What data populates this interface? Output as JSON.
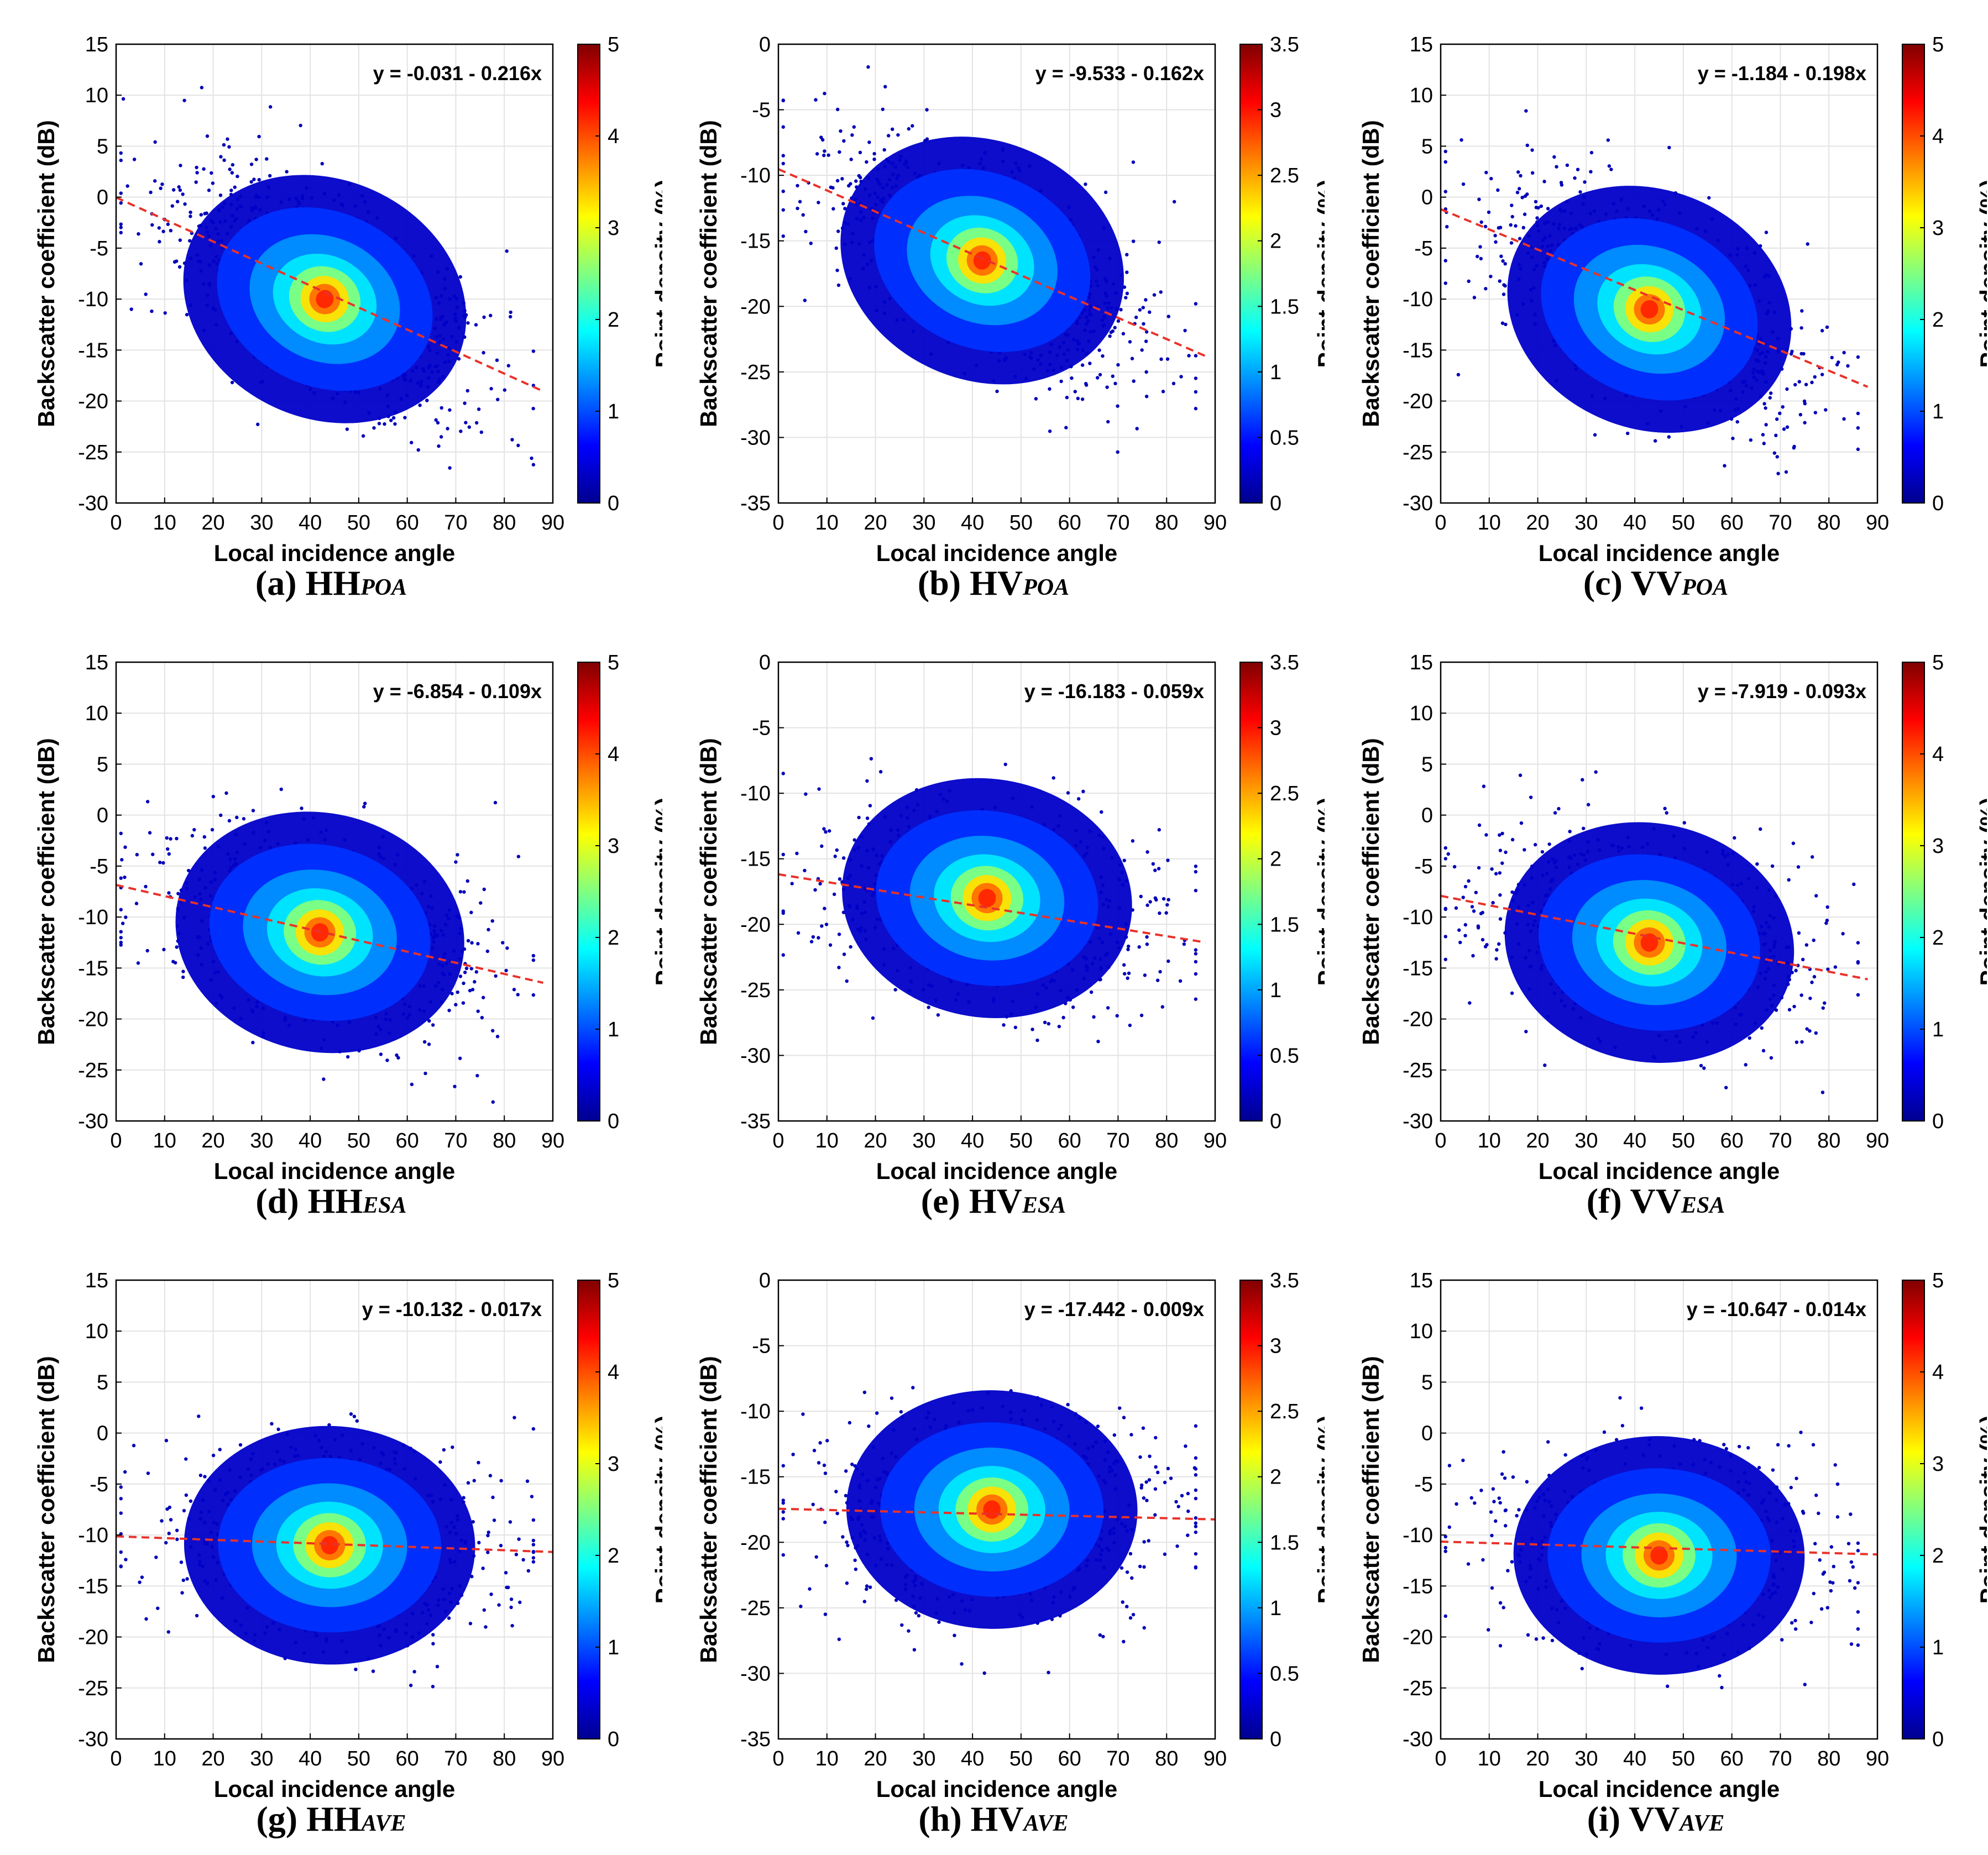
{
  "figure": {
    "xlabel": "Local incidence angle",
    "ylabel": "Backscatter coefficient (dB)",
    "colorbar_label": "Point density (%)",
    "colormap": [
      "#00008f",
      "#0000ff",
      "#0080ff",
      "#00ffff",
      "#80ff80",
      "#ffff00",
      "#ff8000",
      "#ff0000",
      "#800000"
    ],
    "fit_color": "#e8322a"
  },
  "chart_data": [
    {
      "id": "a",
      "type": "scatter",
      "caption_prefix": "(a) HH",
      "caption_sub": "POA",
      "equation": "y = -0.031 - 0.216x",
      "intercept": -0.031,
      "slope": -0.216,
      "xlim": [
        0,
        90
      ],
      "ylim": [
        -30,
        15
      ],
      "xticks": [
        0,
        10,
        20,
        30,
        40,
        50,
        60,
        70,
        80,
        90
      ],
      "yticks": [
        -30,
        -25,
        -20,
        -15,
        -10,
        -5,
        0,
        5,
        10,
        15
      ],
      "ytick_labels": [
        "-30",
        "-25",
        "-20",
        "-15",
        "-10",
        "-5",
        "0",
        "5",
        "10",
        "15"
      ],
      "cbar_lim": [
        0,
        5
      ],
      "cbar_ticks": [
        0,
        1,
        2,
        3,
        4,
        5
      ],
      "cbar_tick_labels": [
        "0",
        "1",
        "2",
        "3",
        "4",
        "5"
      ],
      "density_center": [
        43,
        -10
      ],
      "fit_x_range": [
        0,
        88
      ]
    },
    {
      "id": "b",
      "type": "scatter",
      "caption_prefix": "(b) HV",
      "caption_sub": "POA",
      "equation": "y = -9.533 - 0.162x",
      "intercept": -9.533,
      "slope": -0.162,
      "xlim": [
        0,
        90
      ],
      "ylim": [
        -35,
        0
      ],
      "xticks": [
        0,
        10,
        20,
        30,
        40,
        50,
        60,
        70,
        80,
        90
      ],
      "yticks": [
        -35,
        -30,
        -25,
        -20,
        -15,
        -10,
        -5,
        0
      ],
      "ytick_labels": [
        "-35",
        "-30",
        "-25",
        "-20",
        "-15",
        "-10",
        "-5",
        "0"
      ],
      "cbar_lim": [
        0,
        3.5
      ],
      "cbar_ticks": [
        0,
        0.5,
        1,
        1.5,
        2,
        2.5,
        3,
        3.5
      ],
      "cbar_tick_labels": [
        "0",
        "0.5",
        "1",
        "1.5",
        "2",
        "2.5",
        "3",
        "3.5"
      ],
      "density_center": [
        42,
        -16.5
      ],
      "fit_x_range": [
        0,
        88
      ]
    },
    {
      "id": "c",
      "type": "scatter",
      "caption_prefix": "(c) VV",
      "caption_sub": "POA",
      "equation": "y = -1.184 - 0.198x",
      "intercept": -1.184,
      "slope": -0.198,
      "xlim": [
        0,
        90
      ],
      "ylim": [
        -30,
        15
      ],
      "xticks": [
        0,
        10,
        20,
        30,
        40,
        50,
        60,
        70,
        80,
        90
      ],
      "yticks": [
        -30,
        -25,
        -20,
        -15,
        -10,
        -5,
        0,
        5,
        10,
        15
      ],
      "ytick_labels": [
        "-30",
        "-25",
        "-20",
        "-15",
        "-10",
        "-5",
        "0",
        "5",
        "10",
        "15"
      ],
      "cbar_lim": [
        0,
        5
      ],
      "cbar_ticks": [
        0,
        1,
        2,
        3,
        4,
        5
      ],
      "cbar_tick_labels": [
        "0",
        "1",
        "2",
        "3",
        "4",
        "5"
      ],
      "density_center": [
        43,
        -11
      ],
      "fit_x_range": [
        0,
        88
      ]
    },
    {
      "id": "d",
      "type": "scatter",
      "caption_prefix": "(d) HH",
      "caption_sub": "ESA",
      "equation": "y = -6.854 - 0.109x",
      "intercept": -6.854,
      "slope": -0.109,
      "xlim": [
        0,
        90
      ],
      "ylim": [
        -30,
        15
      ],
      "xticks": [
        0,
        10,
        20,
        30,
        40,
        50,
        60,
        70,
        80,
        90
      ],
      "yticks": [
        -30,
        -25,
        -20,
        -15,
        -10,
        -5,
        0,
        5,
        10,
        15
      ],
      "ytick_labels": [
        "-30",
        "-25",
        "-20",
        "-15",
        "-10",
        "-5",
        "0",
        "5",
        "10",
        "15"
      ],
      "cbar_lim": [
        0,
        5
      ],
      "cbar_ticks": [
        0,
        1,
        2,
        3,
        4,
        5
      ],
      "cbar_tick_labels": [
        "0",
        "1",
        "2",
        "3",
        "4",
        "5"
      ],
      "density_center": [
        42,
        -11.5
      ],
      "fit_x_range": [
        0,
        88
      ]
    },
    {
      "id": "e",
      "type": "scatter",
      "caption_prefix": "(e) HV",
      "caption_sub": "ESA",
      "equation": "y = -16.183 - 0.059x",
      "intercept": -16.183,
      "slope": -0.059,
      "xlim": [
        0,
        90
      ],
      "ylim": [
        -35,
        0
      ],
      "xticks": [
        0,
        10,
        20,
        30,
        40,
        50,
        60,
        70,
        80,
        90
      ],
      "yticks": [
        -35,
        -30,
        -25,
        -20,
        -15,
        -10,
        -5,
        0
      ],
      "ytick_labels": [
        "-35",
        "-30",
        "-25",
        "-20",
        "-15",
        "-10",
        "-5",
        "0"
      ],
      "cbar_lim": [
        0,
        3.5
      ],
      "cbar_ticks": [
        0,
        0.5,
        1,
        1.5,
        2,
        2.5,
        3,
        3.5
      ],
      "cbar_tick_labels": [
        "0",
        "0.5",
        "1",
        "1.5",
        "2",
        "2.5",
        "3",
        "3.5"
      ],
      "density_center": [
        43,
        -18
      ],
      "fit_x_range": [
        0,
        88
      ]
    },
    {
      "id": "f",
      "type": "scatter",
      "caption_prefix": "(f) VV",
      "caption_sub": "ESA",
      "equation": "y = -7.919 - 0.093x",
      "intercept": -7.919,
      "slope": -0.093,
      "xlim": [
        0,
        90
      ],
      "ylim": [
        -30,
        15
      ],
      "xticks": [
        0,
        10,
        20,
        30,
        40,
        50,
        60,
        70,
        80,
        90
      ],
      "yticks": [
        -30,
        -25,
        -20,
        -15,
        -10,
        -5,
        0,
        5,
        10,
        15
      ],
      "ytick_labels": [
        "-30",
        "-25",
        "-20",
        "-15",
        "-10",
        "-5",
        "0",
        "5",
        "10",
        "15"
      ],
      "cbar_lim": [
        0,
        5
      ],
      "cbar_ticks": [
        0,
        1,
        2,
        3,
        4,
        5
      ],
      "cbar_tick_labels": [
        "0",
        "1",
        "2",
        "3",
        "4",
        "5"
      ],
      "density_center": [
        43,
        -12.5
      ],
      "fit_x_range": [
        0,
        88
      ]
    },
    {
      "id": "g",
      "type": "scatter",
      "caption_prefix": "(g) HH",
      "caption_sub": "AVE",
      "equation": "y = -10.132 - 0.017x",
      "intercept": -10.132,
      "slope": -0.017,
      "xlim": [
        0,
        90
      ],
      "ylim": [
        -30,
        15
      ],
      "xticks": [
        0,
        10,
        20,
        30,
        40,
        50,
        60,
        70,
        80,
        90
      ],
      "yticks": [
        -30,
        -25,
        -20,
        -15,
        -10,
        -5,
        0,
        5,
        10,
        15
      ],
      "ytick_labels": [
        "-30",
        "-25",
        "-20",
        "-15",
        "-10",
        "-5",
        "0",
        "5",
        "10",
        "15"
      ],
      "cbar_lim": [
        0,
        5
      ],
      "cbar_ticks": [
        0,
        1,
        2,
        3,
        4,
        5
      ],
      "cbar_tick_labels": [
        "0",
        "1",
        "2",
        "3",
        "4",
        "5"
      ],
      "density_center": [
        44,
        -11
      ],
      "fit_x_range": [
        0,
        90
      ]
    },
    {
      "id": "h",
      "type": "scatter",
      "caption_prefix": "(h) HV",
      "caption_sub": "AVE",
      "equation": "y = -17.442 - 0.009x",
      "intercept": -17.442,
      "slope": -0.009,
      "xlim": [
        0,
        90
      ],
      "ylim": [
        -35,
        0
      ],
      "xticks": [
        0,
        10,
        20,
        30,
        40,
        50,
        60,
        70,
        80,
        90
      ],
      "yticks": [
        -35,
        -30,
        -25,
        -20,
        -15,
        -10,
        -5,
        0
      ],
      "ytick_labels": [
        "-35",
        "-30",
        "-25",
        "-20",
        "-15",
        "-10",
        "-5",
        "0"
      ],
      "cbar_lim": [
        0,
        3.5
      ],
      "cbar_ticks": [
        0,
        0.5,
        1,
        1.5,
        2,
        2.5,
        3,
        3.5
      ],
      "cbar_tick_labels": [
        "0",
        "0.5",
        "1",
        "1.5",
        "2",
        "2.5",
        "3",
        "3.5"
      ],
      "density_center": [
        44,
        -17.5
      ],
      "fit_x_range": [
        0,
        90
      ]
    },
    {
      "id": "i",
      "type": "scatter",
      "caption_prefix": "(i) VV",
      "caption_sub": "AVE",
      "equation": "y = -10.647 - 0.014x",
      "intercept": -10.647,
      "slope": -0.014,
      "xlim": [
        0,
        90
      ],
      "ylim": [
        -30,
        15
      ],
      "xticks": [
        0,
        10,
        20,
        30,
        40,
        50,
        60,
        70,
        80,
        90
      ],
      "yticks": [
        -30,
        -25,
        -20,
        -15,
        -10,
        -5,
        0,
        5,
        10,
        15
      ],
      "ytick_labels": [
        "-30",
        "-25",
        "-20",
        "-15",
        "-10",
        "-5",
        "0",
        "5",
        "10",
        "15"
      ],
      "cbar_lim": [
        0,
        5
      ],
      "cbar_ticks": [
        0,
        1,
        2,
        3,
        4,
        5
      ],
      "cbar_tick_labels": [
        "0",
        "1",
        "2",
        "3",
        "4",
        "5"
      ],
      "density_center": [
        45,
        -12
      ],
      "fit_x_range": [
        0,
        90
      ]
    }
  ]
}
